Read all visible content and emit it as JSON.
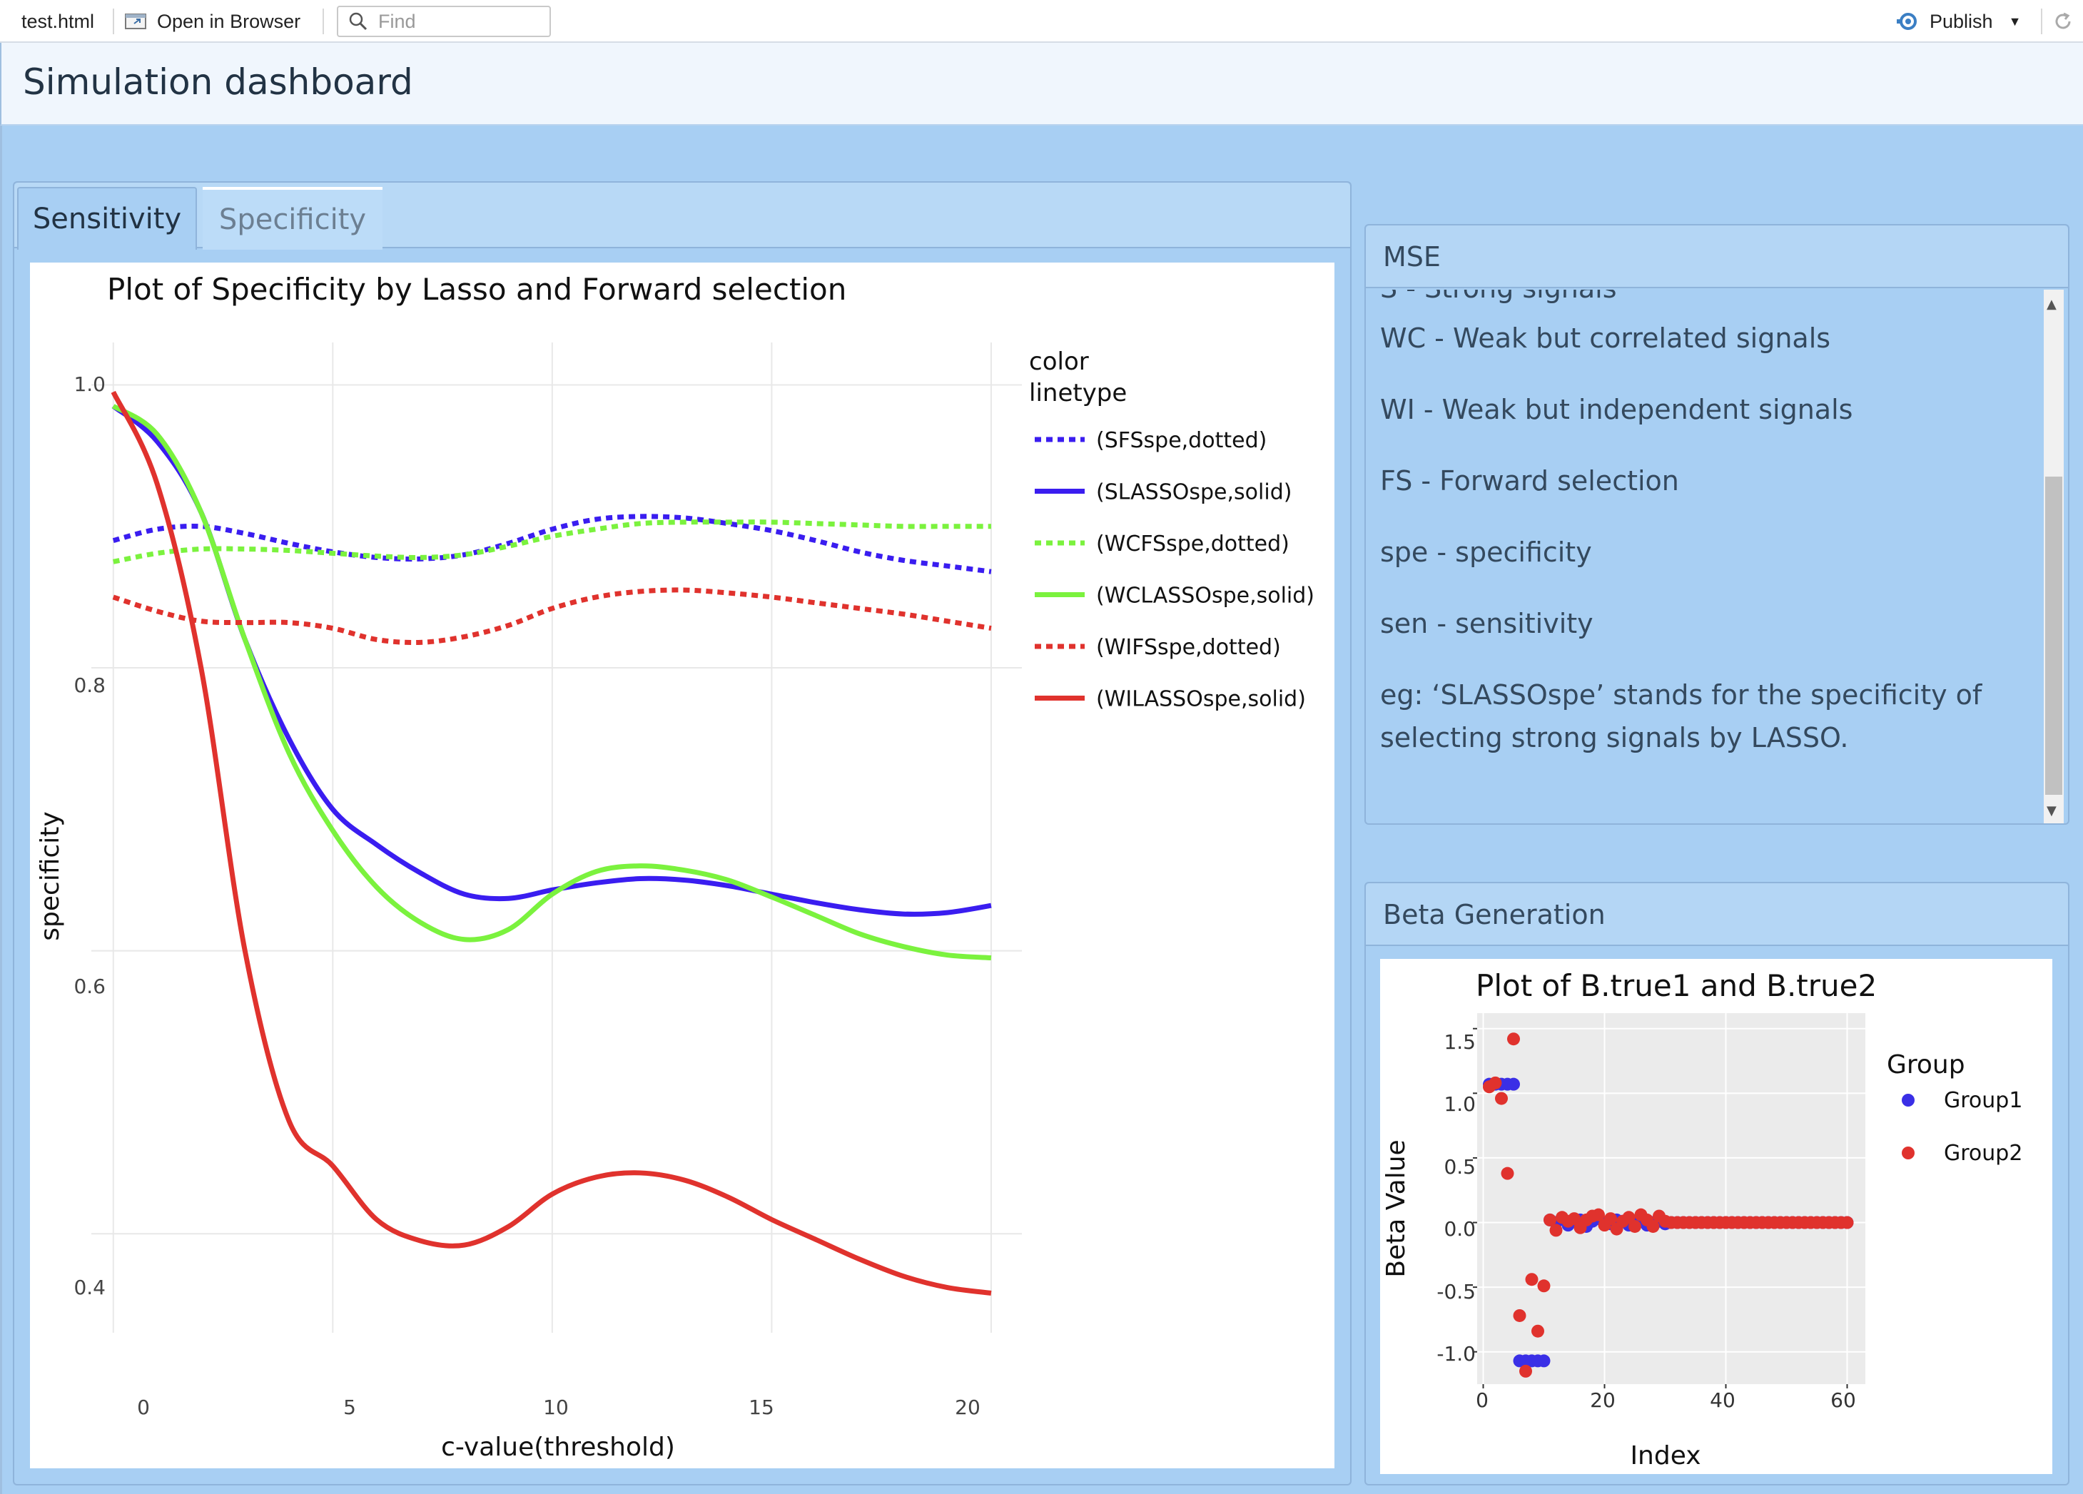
{
  "toolbar": {
    "file_tab": "test.html",
    "open_in_browser": "Open in Browser",
    "find_placeholder": "Find",
    "publish": "Publish"
  },
  "dashboard": {
    "title": "Simulation dashboard"
  },
  "tabs": [
    {
      "label": "Sensitivity",
      "active": true
    },
    {
      "label": "Specificity",
      "active": false
    }
  ],
  "main_plot": {
    "title": "Plot of Specificity by Lasso and Forward selection",
    "legend_heading_1": "color",
    "legend_heading_2": "linetype",
    "ytick_labels": [
      "1.0",
      "0.8",
      "0.6",
      "0.4"
    ],
    "xtick_labels": [
      "0",
      "5",
      "10",
      "15",
      "20"
    ]
  },
  "mse_box": {
    "title": "MSE",
    "lines": [
      "S - Strong signals",
      "WC - Weak but correlated signals",
      "WI - Weak but independent signals",
      "FS - Forward selection",
      "spe - specificity",
      "sen - sensitivity",
      "eg: ‘SLASSOspe’ stands for the specificity of",
      "selecting strong signals by LASSO."
    ]
  },
  "beta_box": {
    "title": "Beta Generation"
  },
  "beta_plot": {
    "title": "Plot of B.true1 and B.true2",
    "ytick_labels": [
      "1.5",
      "1.0",
      "0.5",
      "0.0",
      "-0.5",
      "-1.0"
    ],
    "xtick_labels": [
      "0",
      "20",
      "40",
      "60"
    ],
    "legend_title": "Group"
  },
  "chart_data": [
    {
      "type": "line",
      "title": "Plot of Specificity by Lasso and Forward selection",
      "xlabel": "c-value(threshold)",
      "ylabel": "specificity",
      "xlim": [
        -0.5,
        20.7
      ],
      "ylim": [
        0.33,
        1.03
      ],
      "xticks": [
        0,
        5,
        10,
        15,
        20
      ],
      "yticks": [
        0.4,
        0.6,
        0.8,
        1.0
      ],
      "grid": true,
      "legend_position": "right",
      "legend_title": [
        "color",
        "linetype"
      ],
      "series": [
        {
          "name": "(SFSspe,dotted)",
          "color": "#3a1df0",
          "dash": "dotted",
          "x": [
            0,
            1,
            2,
            3,
            4,
            5,
            6,
            7,
            8,
            9,
            10,
            11,
            12,
            13,
            14,
            15,
            16,
            17,
            18,
            19,
            20
          ],
          "y": [
            0.89,
            0.898,
            0.9,
            0.895,
            0.888,
            0.882,
            0.878,
            0.877,
            0.88,
            0.888,
            0.898,
            0.905,
            0.907,
            0.906,
            0.902,
            0.897,
            0.89,
            0.882,
            0.876,
            0.872,
            0.868
          ]
        },
        {
          "name": "(SLASSOspe,solid)",
          "color": "#3a1df0",
          "dash": "solid",
          "x": [
            0,
            1,
            2,
            3,
            4,
            5,
            6,
            7,
            8,
            9,
            10,
            11,
            12,
            13,
            14,
            15,
            16,
            17,
            18,
            19,
            20
          ],
          "y": [
            0.985,
            0.96,
            0.91,
            0.82,
            0.75,
            0.7,
            0.675,
            0.655,
            0.64,
            0.637,
            0.643,
            0.648,
            0.651,
            0.65,
            0.646,
            0.64,
            0.634,
            0.629,
            0.626,
            0.627,
            0.632
          ]
        },
        {
          "name": "(WCFSspe,dotted)",
          "color": "#7bf23e",
          "dash": "dotted",
          "x": [
            0,
            1,
            2,
            3,
            4,
            5,
            6,
            7,
            8,
            9,
            10,
            11,
            12,
            13,
            14,
            15,
            16,
            17,
            18,
            19,
            20
          ],
          "y": [
            0.875,
            0.881,
            0.884,
            0.884,
            0.883,
            0.881,
            0.879,
            0.878,
            0.88,
            0.886,
            0.893,
            0.898,
            0.902,
            0.903,
            0.903,
            0.903,
            0.902,
            0.901,
            0.9,
            0.9,
            0.9
          ]
        },
        {
          "name": "(WCLASSOspe,solid)",
          "color": "#7bf23e",
          "dash": "solid",
          "x": [
            0,
            1,
            2,
            3,
            4,
            5,
            6,
            7,
            8,
            9,
            10,
            11,
            12,
            13,
            14,
            15,
            16,
            17,
            18,
            19,
            20
          ],
          "y": [
            0.985,
            0.965,
            0.91,
            0.82,
            0.74,
            0.685,
            0.645,
            0.62,
            0.608,
            0.615,
            0.64,
            0.656,
            0.66,
            0.657,
            0.65,
            0.638,
            0.625,
            0.612,
            0.603,
            0.597,
            0.595
          ]
        },
        {
          "name": "(WIFSspe,dotted)",
          "color": "#e0322d",
          "dash": "dotted",
          "x": [
            0,
            1,
            2,
            3,
            4,
            5,
            6,
            7,
            8,
            9,
            10,
            11,
            12,
            13,
            14,
            15,
            16,
            17,
            18,
            19,
            20
          ],
          "y": [
            0.85,
            0.84,
            0.833,
            0.832,
            0.832,
            0.828,
            0.82,
            0.818,
            0.822,
            0.83,
            0.842,
            0.85,
            0.854,
            0.855,
            0.853,
            0.85,
            0.846,
            0.842,
            0.838,
            0.833,
            0.828
          ]
        },
        {
          "name": "(WILASSOspe,solid)",
          "color": "#e0322d",
          "dash": "solid",
          "x": [
            0,
            1,
            2,
            3,
            4,
            5,
            6,
            7,
            8,
            9,
            10,
            11,
            12,
            13,
            14,
            15,
            16,
            17,
            18,
            19,
            20
          ],
          "y": [
            0.995,
            0.93,
            0.8,
            0.6,
            0.48,
            0.448,
            0.41,
            0.395,
            0.392,
            0.405,
            0.428,
            0.44,
            0.443,
            0.438,
            0.426,
            0.41,
            0.396,
            0.382,
            0.37,
            0.362,
            0.358
          ]
        }
      ]
    },
    {
      "type": "scatter",
      "title": "Plot of B.true1 and B.true2",
      "xlabel": "Index",
      "ylabel": "Beta Value",
      "xlim": [
        -1,
        63
      ],
      "ylim": [
        -1.25,
        1.62
      ],
      "xticks": [
        0,
        20,
        40,
        60
      ],
      "yticks": [
        -1.0,
        -0.5,
        0.0,
        0.5,
        1.0,
        1.5
      ],
      "grid": true,
      "legend_position": "right",
      "legend_title": "Group",
      "series": [
        {
          "name": "Group1",
          "color": "#3a2fe6",
          "x": [
            1,
            2,
            3,
            4,
            5,
            6,
            7,
            8,
            9,
            10,
            11,
            12,
            13,
            14,
            15,
            16,
            17,
            18,
            19,
            20,
            21,
            22,
            23,
            24,
            25,
            26,
            27,
            28,
            29,
            30,
            31,
            32,
            33,
            34,
            35,
            36,
            37,
            38,
            39,
            40,
            41,
            42,
            43,
            44,
            45,
            46,
            47,
            48,
            49,
            50,
            51,
            52,
            53,
            54,
            55,
            56,
            57,
            58,
            59,
            60
          ],
          "y": [
            1.07,
            1.07,
            1.07,
            1.07,
            1.07,
            -1.07,
            -1.07,
            -1.07,
            -1.07,
            -1.07,
            0.02,
            0.0,
            0.03,
            -0.02,
            0.01,
            0.02,
            -0.03,
            0.01,
            0.03,
            0.0,
            -0.01,
            0.02,
            0.01,
            -0.02,
            0.0,
            0.01,
            -0.02,
            0.0,
            0.01,
            -0.01,
            0,
            0,
            0,
            0,
            0,
            0,
            0,
            0,
            0,
            0,
            0,
            0,
            0,
            0,
            0,
            0,
            0,
            0,
            0,
            0,
            0,
            0,
            0,
            0,
            0,
            0,
            0,
            0,
            0,
            0
          ]
        },
        {
          "name": "Group2",
          "color": "#e0322d",
          "x": [
            1,
            2,
            3,
            4,
            5,
            6,
            7,
            8,
            9,
            10,
            11,
            12,
            13,
            14,
            15,
            16,
            17,
            18,
            19,
            20,
            21,
            22,
            23,
            24,
            25,
            26,
            27,
            28,
            29,
            30,
            31,
            32,
            33,
            34,
            35,
            36,
            37,
            38,
            39,
            40,
            41,
            42,
            43,
            44,
            45,
            46,
            47,
            48,
            49,
            50,
            51,
            52,
            53,
            54,
            55,
            56,
            57,
            58,
            59,
            60
          ],
          "y": [
            1.05,
            1.08,
            0.96,
            0.38,
            1.42,
            -0.72,
            -1.15,
            -0.44,
            -0.84,
            -0.49,
            0.02,
            -0.06,
            0.04,
            0.01,
            0.03,
            -0.04,
            0.02,
            0.05,
            0.06,
            -0.02,
            0.03,
            -0.05,
            0.01,
            0.04,
            -0.03,
            0.06,
            0.02,
            -0.03,
            0.05,
            0.01,
            0,
            0,
            0,
            0,
            0,
            0,
            0,
            0,
            0,
            0,
            0,
            0,
            0,
            0,
            0,
            0,
            0,
            0,
            0,
            0,
            0,
            0,
            0,
            0,
            0,
            0,
            0,
            0,
            0,
            0
          ]
        }
      ]
    }
  ]
}
